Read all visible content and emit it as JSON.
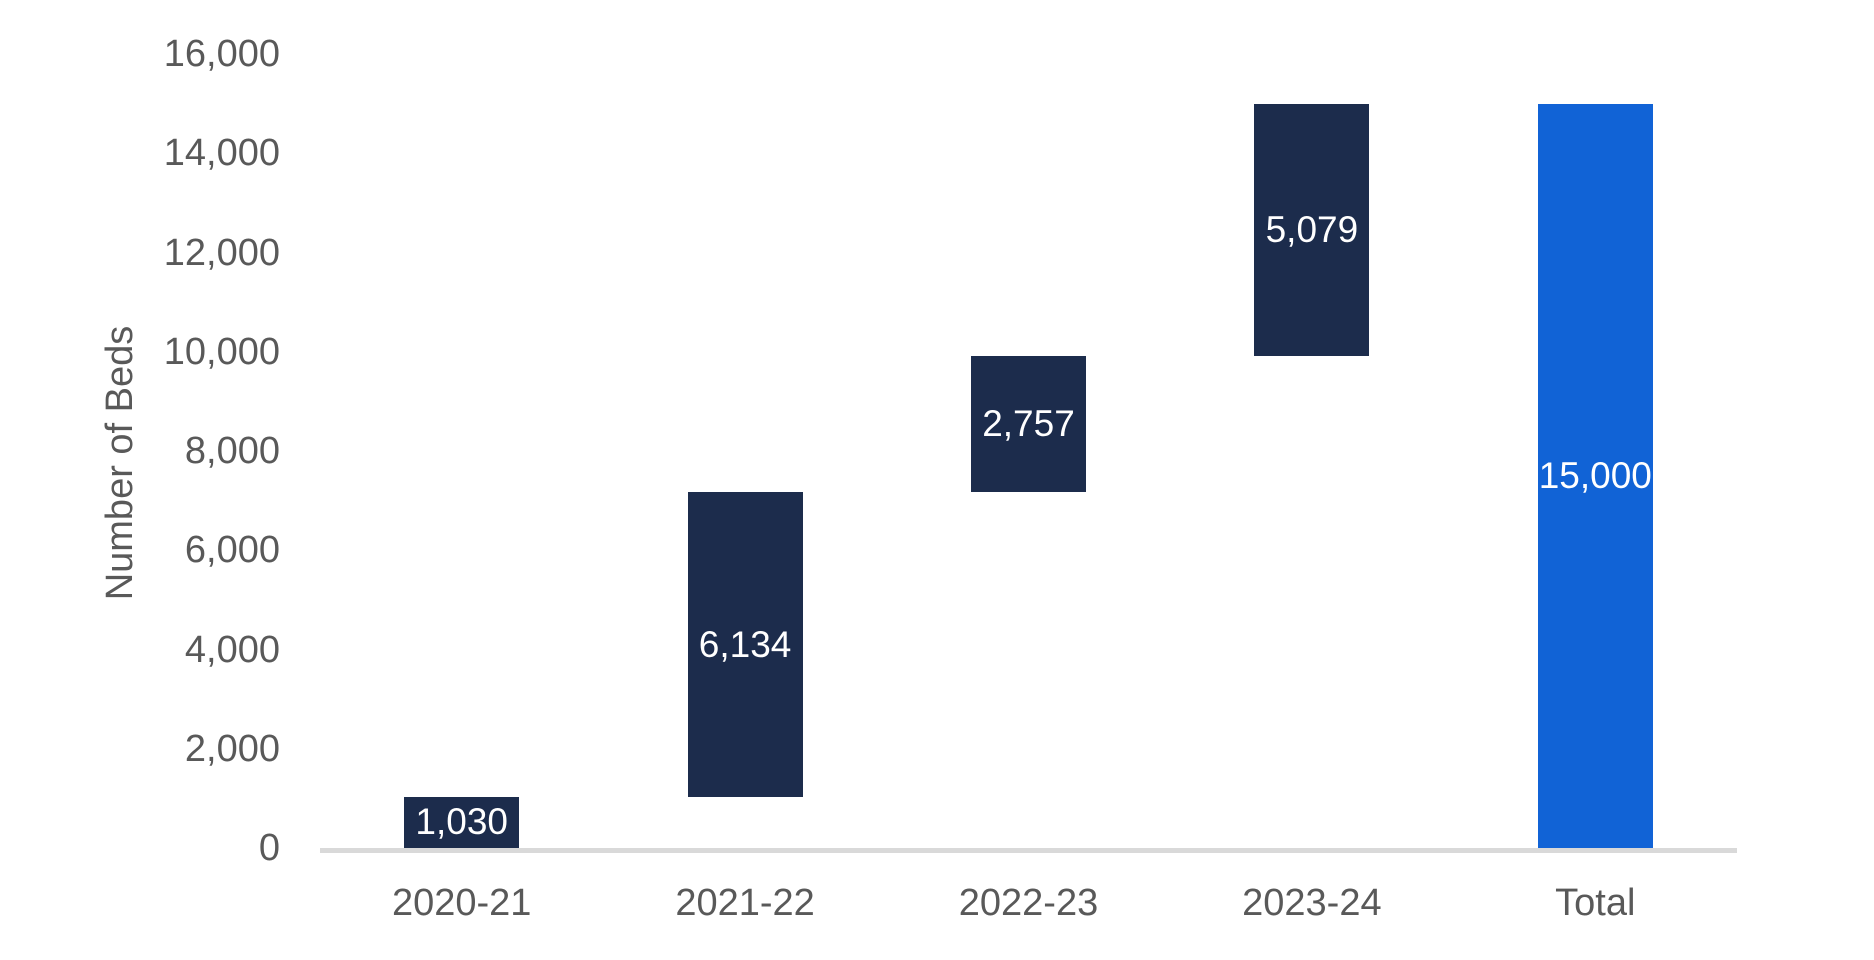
{
  "chart_data": {
    "type": "bar",
    "subtype": "waterfall",
    "title": "",
    "xlabel": "",
    "ylabel": "Number of Beds",
    "ylim": [
      0,
      16000
    ],
    "ytick_step": 2000,
    "ytick_labels": [
      "0",
      "2,000",
      "4,000",
      "6,000",
      "8,000",
      "10,000",
      "12,000",
      "14,000",
      "16,000"
    ],
    "grid": false,
    "legend": false,
    "categories": [
      "2020-21",
      "2021-22",
      "2022-23",
      "2023-24",
      "Total"
    ],
    "bars": [
      {
        "label": "2020-21",
        "value": 1030,
        "start": 0,
        "end": 1030,
        "data_label": "1,030",
        "role": "increment"
      },
      {
        "label": "2021-22",
        "value": 6134,
        "start": 1030,
        "end": 7164,
        "data_label": "6,134",
        "role": "increment"
      },
      {
        "label": "2022-23",
        "value": 2757,
        "start": 7164,
        "end": 9921,
        "data_label": "2,757",
        "role": "increment"
      },
      {
        "label": "2023-24",
        "value": 5079,
        "start": 9921,
        "end": 15000,
        "data_label": "5,079",
        "role": "increment"
      },
      {
        "label": "Total",
        "value": 15000,
        "start": 0,
        "end": 15000,
        "data_label": "15,000",
        "role": "total"
      }
    ],
    "colors": {
      "increment": "#1c2c4c",
      "total": "#1163d6",
      "axis_line": "#d9d9d9",
      "tick_text": "#595959",
      "data_label_text": "#ffffff"
    }
  }
}
